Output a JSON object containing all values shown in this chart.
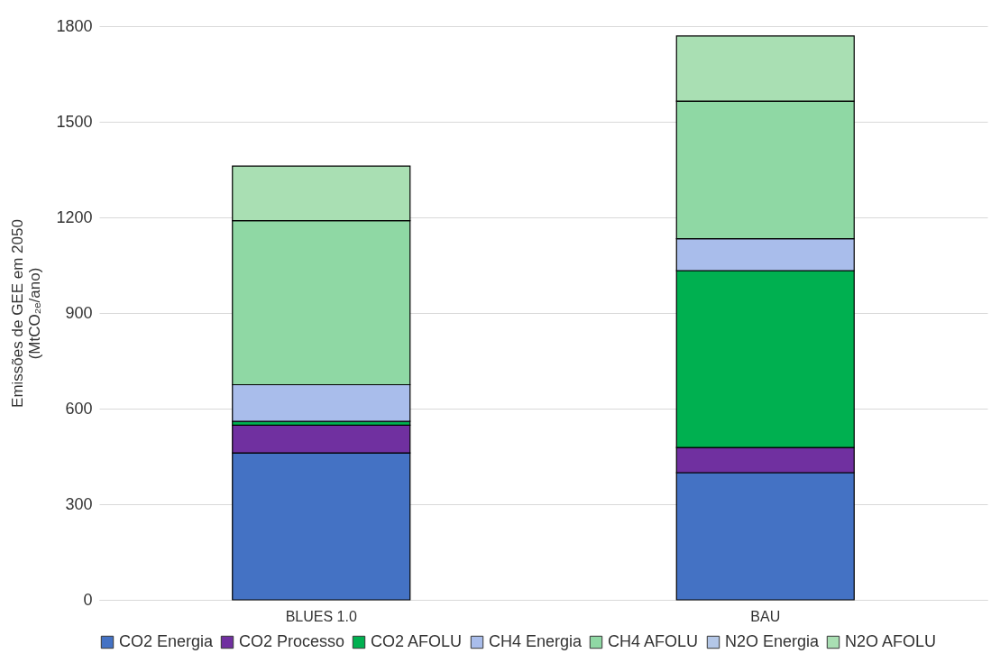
{
  "chart_data": {
    "type": "bar",
    "stacked": true,
    "ylabel": "Emissões de GEE em 2050\n(MtCO₂ₑ/ano)",
    "categories": [
      "BLUES 1.0",
      "BAU"
    ],
    "series": [
      {
        "name": "CO2 Energia",
        "color": "#4472c4",
        "values": [
          461,
          399
        ]
      },
      {
        "name": "CO2 Processo",
        "color": "#7030a0",
        "values": [
          87,
          79
        ]
      },
      {
        "name": "CO2 AFOLU",
        "color": "#00b050",
        "values": [
          12,
          555
        ]
      },
      {
        "name": "CH4 Energia",
        "color": "#a9bdeb",
        "values": [
          115,
          100
        ]
      },
      {
        "name": "CH4 AFOLU",
        "color": "#8fd8a4",
        "values": [
          515,
          432
        ]
      },
      {
        "name": "N2O Energia",
        "color": "#b4c7e7",
        "values": [
          null,
          null
        ]
      },
      {
        "name": "N2O AFOLU",
        "color": "#a9dfb3",
        "values": [
          171,
          204
        ]
      }
    ],
    "ylim": [
      0,
      1800
    ],
    "yticks": [
      0,
      300,
      600,
      900,
      1200,
      1500,
      1800
    ],
    "grid": "y",
    "legend": "bottom"
  }
}
